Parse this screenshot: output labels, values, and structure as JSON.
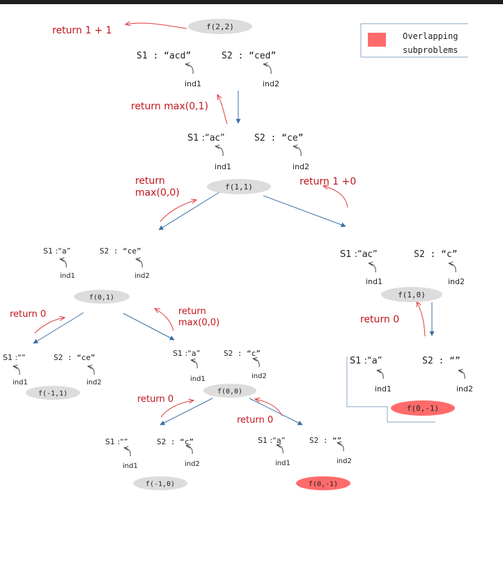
{
  "legend": {
    "label_line1": "Overlapping",
    "label_line2": "subproblems",
    "color": "#ff6b6b"
  },
  "colors": {
    "node": "#dcdcdc",
    "overlap": "#ff6b6b",
    "return_text": "#c0151b",
    "arrow_blue": "#3a6ea5",
    "arrow_red": "#e23b3b"
  },
  "nodes": {
    "n22": "f(2,2)",
    "n11": "f(1,1)",
    "n01": "f(0,1)",
    "n10": "f(1,0)",
    "nm11": "f(-1,1)",
    "n00": "f(0,0)",
    "n0m1_right": "f(0,-1)",
    "nm10": "f(-1,0)",
    "n0m1_bottom": "f(0,-1)"
  },
  "states": {
    "root": {
      "s1": "S1 : “acd”",
      "s2": "S2 : “ced”",
      "ind1": "ind1",
      "ind2": "ind2"
    },
    "l1": {
      "s1": "S1 :“ac”",
      "s2": "S2 : “ce”",
      "ind1": "ind1",
      "ind2": "ind2"
    },
    "l2a": {
      "s1": "S1 :“a”",
      "s2": "S2 : “ce”",
      "ind1": "ind1",
      "ind2": "ind2"
    },
    "l2b": {
      "s1": "S1 :“ac”",
      "s2": "S2 : “c”",
      "ind1": "ind1",
      "ind2": "ind2"
    },
    "l3a": {
      "s1": "S1 :“”",
      "s2": "S2 : “ce”",
      "ind1": "ind1",
      "ind2": "ind2"
    },
    "l3b": {
      "s1": "S1 :“a”",
      "s2": "S2 : “c”",
      "ind1": "ind1",
      "ind2": "ind2"
    },
    "l3c": {
      "s1": "S1 :“a”",
      "s2": "S2 : “”",
      "ind1": "ind1",
      "ind2": "ind2"
    },
    "l4a": {
      "s1": "S1 :“”",
      "s2": "S2 : “c”",
      "ind1": "ind1",
      "ind2": "ind2"
    },
    "l4b": {
      "s1": "S1 :“a”",
      "s2": "S2 : “”",
      "ind1": "ind1",
      "ind2": "ind2"
    }
  },
  "returns": {
    "root": "return  1 + 1",
    "l1": "return  max(0,1)",
    "l2a_line1": "return",
    "l2a_line2": "max(0,0)",
    "l2b": "return  1 +0",
    "l3a": "return  0",
    "l3b_line1": "return",
    "l3b_line2": "max(0,0)",
    "l3c": "return  0",
    "l4a": "return  0",
    "l4b": "return  0"
  }
}
